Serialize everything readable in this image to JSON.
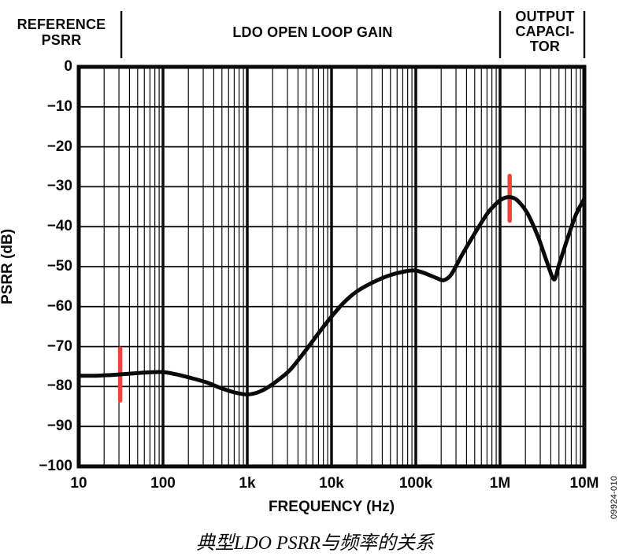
{
  "regions": {
    "left_label": "REFERENCE\nPSRR",
    "mid_label": "LDO OPEN LOOP GAIN",
    "right_label": "OUTPUT\nCAPACI-\nTOR"
  },
  "figure_number": "09924-010",
  "caption": "典型LDO PSRR与频率的关系",
  "chart_data": {
    "type": "line",
    "xlabel": "FREQUENCY (Hz)",
    "ylabel": "PSRR (dB)",
    "x_scale": "log",
    "x_range_hz": [
      10,
      10000000
    ],
    "x_tick_labels": [
      "10",
      "100",
      "1k",
      "10k",
      "100k",
      "1M",
      "10M"
    ],
    "ylim": [
      -100,
      0
    ],
    "y_tick_step": 10,
    "y_tick_labels": [
      "0",
      "−10",
      "−20",
      "−30",
      "−40",
      "−50",
      "−60",
      "−70",
      "−80",
      "−90",
      "−100"
    ],
    "grid": "log-x-minor, 10dB-horizontal",
    "legend": "none",
    "regions": [
      {
        "label": "REFERENCE PSRR",
        "from_hz": 10,
        "to_hz": 32
      },
      {
        "label": "LDO OPEN LOOP GAIN",
        "from_hz": 32,
        "to_hz": 1000000
      },
      {
        "label": "OUTPUT CAPACITOR",
        "from_hz": 1000000,
        "to_hz": 10000000
      }
    ],
    "series": [
      {
        "name": "Typical LDO PSRR",
        "color": "#0a0a0a",
        "points": [
          [
            10,
            -77.3
          ],
          [
            16,
            -77.3
          ],
          [
            25,
            -77.1
          ],
          [
            40,
            -76.8
          ],
          [
            63,
            -76.5
          ],
          [
            100,
            -76.4
          ],
          [
            140,
            -76.9
          ],
          [
            200,
            -77.7
          ],
          [
            320,
            -78.9
          ],
          [
            500,
            -80.5
          ],
          [
            710,
            -81.5
          ],
          [
            1000,
            -82.0
          ],
          [
            1400,
            -81.3
          ],
          [
            2000,
            -79.4
          ],
          [
            3200,
            -75.9
          ],
          [
            5000,
            -70.8
          ],
          [
            7100,
            -66.5
          ],
          [
            10000,
            -62.5
          ],
          [
            14000,
            -59.0
          ],
          [
            20000,
            -56.2
          ],
          [
            32000,
            -53.8
          ],
          [
            50000,
            -52.1
          ],
          [
            79000,
            -51.1
          ],
          [
            100000,
            -51.0
          ],
          [
            126000,
            -51.6
          ],
          [
            178000,
            -52.9
          ],
          [
            214000,
            -53.4
          ],
          [
            263000,
            -52.0
          ],
          [
            355000,
            -47.0
          ],
          [
            500000,
            -41.7
          ],
          [
            724000,
            -36.4
          ],
          [
            1000000,
            -33.4
          ],
          [
            1260000,
            -32.6
          ],
          [
            1580000,
            -33.3
          ],
          [
            2090000,
            -36.5
          ],
          [
            2820000,
            -42.5
          ],
          [
            3550000,
            -48.5
          ],
          [
            4370000,
            -53.2
          ],
          [
            5010000,
            -49.5
          ],
          [
            6310000,
            -43.0
          ],
          [
            7940000,
            -37.0
          ],
          [
            10000000,
            -33.0
          ]
        ]
      }
    ],
    "markers": [
      {
        "name": "reference-psrr-marker",
        "freq_hz": 31,
        "db_from": -70.5,
        "db_to": -83.5,
        "color": "#f2423b"
      },
      {
        "name": "output-capacitor-marker",
        "freq_hz": 1300000,
        "db_from": -27.3,
        "db_to": -38.5,
        "color": "#f2423b"
      }
    ]
  }
}
